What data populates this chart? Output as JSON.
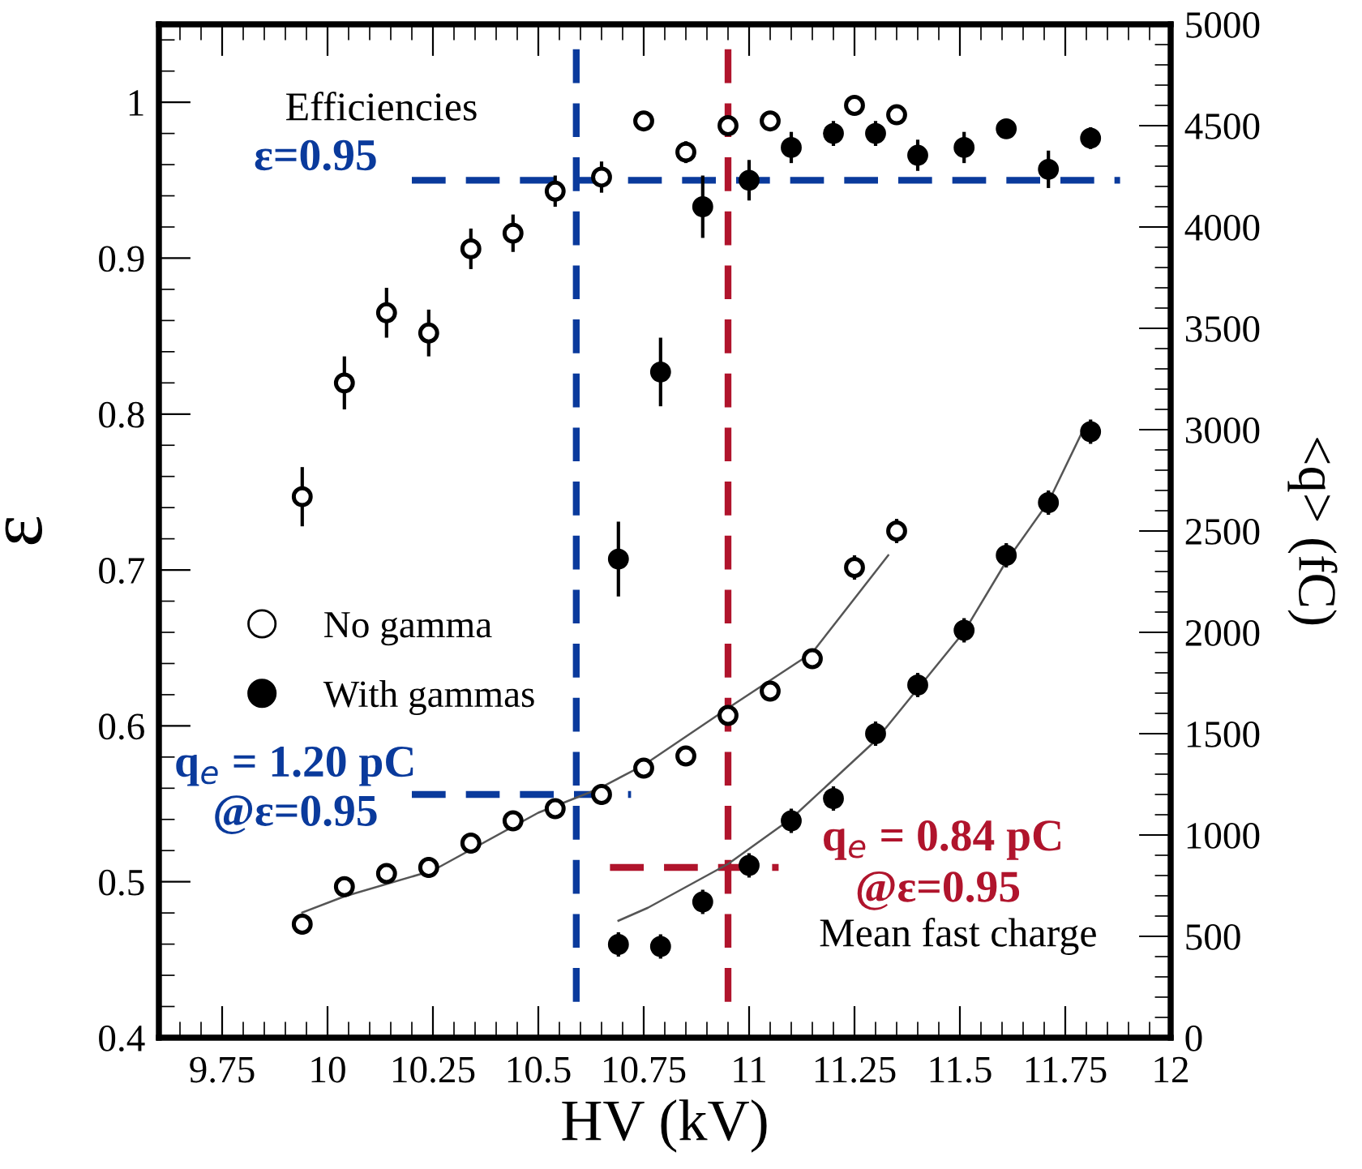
{
  "chart_data": {
    "type": "scatter",
    "xlabel": "HV (kV)",
    "ylabel": "ε",
    "y2label": "<q> (fC)",
    "xlim": [
      9.6,
      12
    ],
    "xticks": [
      9.75,
      10,
      10.25,
      10.5,
      10.75,
      11,
      11.25,
      11.5,
      11.75,
      12
    ],
    "ylim": [
      0.4,
      1.05
    ],
    "yticks": [
      0.4,
      0.5,
      0.6,
      0.7,
      0.8,
      0.9,
      1
    ],
    "y2lim": [
      0,
      5000
    ],
    "y2ticks": [
      0,
      500,
      1000,
      1500,
      2000,
      2500,
      3000,
      3500,
      4000,
      4500,
      5000
    ],
    "grid": false,
    "legend": "left",
    "series": [
      {
        "name": "No gamma",
        "marker": "circle",
        "color": "#000000",
        "x": [
          9.94,
          10.04,
          10.14,
          10.24,
          10.34,
          10.44,
          10.54,
          10.65,
          10.75,
          10.85,
          10.95,
          11.05,
          11.25,
          11.35
        ],
        "values": [
          0.747,
          0.82,
          0.865,
          0.852,
          0.906,
          0.916,
          0.943,
          0.952,
          0.988,
          0.968,
          0.985,
          0.988,
          0.998,
          0.992
        ],
        "errors": [
          0.019,
          0.017,
          0.016,
          0.015,
          0.013,
          0.012,
          0.01,
          0.01,
          0.005,
          0.007,
          0.005,
          0.005,
          0.004,
          0.004
        ]
      },
      {
        "name": "With gammas",
        "marker": "circle",
        "color": "#000000",
        "x": [
          10.69,
          10.79,
          10.89,
          11.0,
          11.1,
          11.2,
          11.3,
          11.4,
          11.51,
          11.61,
          11.71,
          11.81
        ],
        "values": [
          0.707,
          0.827,
          0.933,
          0.95,
          0.971,
          0.98,
          0.98,
          0.966,
          0.971,
          0.983,
          0.957,
          0.977
        ],
        "errors": [
          0.024,
          0.022,
          0.02,
          0.013,
          0.01,
          0.008,
          0.008,
          0.01,
          0.01,
          0.006,
          0.012,
          0.007
        ]
      },
      {
        "axis": "y2",
        "marker": "circle",
        "color": "#000000",
        "x": [
          9.94,
          10.04,
          10.14,
          10.24,
          10.34,
          10.44,
          10.54,
          10.65,
          10.75,
          10.85,
          10.95,
          11.05,
          11.15,
          11.25,
          11.35
        ],
        "values": [
          560,
          745,
          810,
          840,
          960,
          1070,
          1130,
          1200,
          1330,
          1390,
          1590,
          1710,
          1870,
          2320,
          2500
        ],
        "errors": [
          50,
          50,
          50,
          50,
          50,
          50,
          50,
          50,
          50,
          50,
          50,
          50,
          50,
          60,
          60
        ]
      },
      {
        "axis": "y2",
        "marker": "circle",
        "color": "#000000",
        "x": [
          10.69,
          10.79,
          10.89,
          11.0,
          11.1,
          11.2,
          11.3,
          11.4,
          11.51,
          11.61,
          11.71,
          11.81
        ],
        "values": [
          460,
          450,
          670,
          850,
          1070,
          1180,
          1500,
          1740,
          2010,
          2380,
          2640,
          2990
        ],
        "errors": [
          60,
          60,
          60,
          60,
          60,
          60,
          60,
          60,
          60,
          60,
          60,
          60
        ]
      },
      {
        "type": "line",
        "axis": "y2",
        "color": "#555555",
        "line_style": "solid",
        "x": [
          9.94,
          10.04,
          10.25,
          10.5,
          10.64,
          10.75,
          10.95,
          11.15,
          11.33
        ],
        "values": [
          617,
          697,
          825,
          1110,
          1225,
          1345,
          1626,
          1900,
          2380
        ]
      },
      {
        "type": "line",
        "axis": "y2",
        "color": "#555555",
        "line_style": "solid",
        "x": [
          10.69,
          10.76,
          10.95,
          11.1,
          11.3,
          11.51,
          11.61,
          11.71,
          11.79
        ],
        "values": [
          577,
          641,
          857,
          1081,
          1466,
          2003,
          2350,
          2643,
          2988
        ]
      },
      {
        "type": "line",
        "color": "#0a3a9c",
        "line_style": "dashed",
        "x": [
          10.2,
          11.88
        ],
        "values": [
          0.95,
          0.95
        ]
      },
      {
        "type": "line",
        "color": "#0a3a9c",
        "line_style": "dashed",
        "x": [
          10.59,
          10.59
        ],
        "values": [
          0.423,
          1.035
        ]
      },
      {
        "type": "line",
        "axis": "y2",
        "color": "#0a3a9c",
        "line_style": "dashed",
        "x": [
          10.2,
          10.72
        ],
        "values": [
          1200,
          1200
        ]
      },
      {
        "type": "line",
        "color": "#b0142c",
        "line_style": "dashed",
        "x": [
          10.95,
          10.95
        ],
        "values": [
          0.423,
          1.035
        ]
      },
      {
        "type": "line",
        "axis": "y2",
        "color": "#b0142c",
        "line_style": "dashed",
        "x": [
          10.67,
          11.07
        ],
        "values": [
          840,
          840
        ]
      }
    ],
    "annotations": [
      "Efficiencies",
      "ε=0.95",
      "q$_{e}$ = 1.20 pC",
      "@ε=0.95",
      "q$_{e}$ = 0.84 pC",
      "@ε=0.95",
      "Mean fast charge"
    ]
  }
}
